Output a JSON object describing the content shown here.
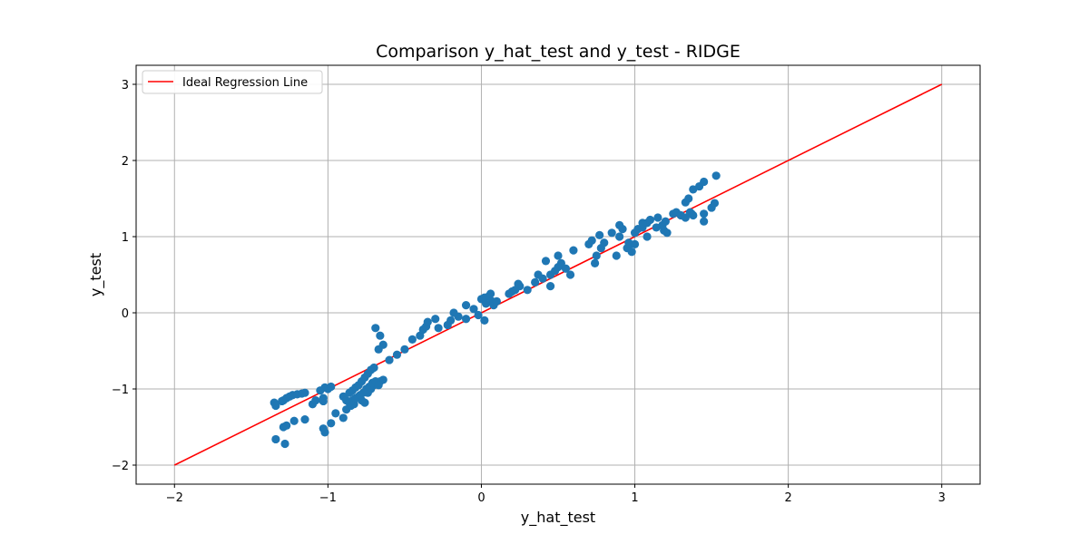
{
  "chart_data": {
    "type": "scatter",
    "title": "Comparison y_hat_test and y_test - RIDGE",
    "xlabel": "y_hat_test",
    "ylabel": "y_test",
    "xlim": [
      -2.25,
      3.25
    ],
    "ylim": [
      -2.25,
      3.25
    ],
    "xticks": [
      -2,
      -1,
      0,
      1,
      2,
      3
    ],
    "yticks": [
      -2,
      -1,
      0,
      1,
      2,
      3
    ],
    "xtick_labels": [
      "−2",
      "−1",
      "0",
      "1",
      "2",
      "3"
    ],
    "ytick_labels": [
      "−2",
      "−1",
      "0",
      "1",
      "2",
      "3"
    ],
    "grid": true,
    "legend": {
      "position": "top-left",
      "entries": [
        "Ideal Regression Line"
      ]
    },
    "colors": {
      "points": "#1f77b4",
      "line": "#ff0000",
      "grid": "#b0b0b0"
    },
    "line": {
      "name": "Ideal Regression Line",
      "x": [
        -2,
        3
      ],
      "y": [
        -2,
        3
      ]
    },
    "series": [
      {
        "x": [
          -1.35,
          -1.34,
          -1.3,
          -1.29,
          -1.27,
          -1.25,
          -1.23,
          -1.2,
          -1.17,
          -1.15,
          -1.1,
          -1.08,
          -1.05,
          -1.02,
          -1.0,
          -0.98,
          -1.03,
          -1.02,
          -1.22,
          -1.15,
          -1.29,
          -1.27,
          -1.34,
          -1.28,
          -1.03,
          -1.03,
          -0.98,
          -0.95,
          -0.9,
          -0.88,
          -0.85,
          -0.83,
          -0.8,
          -0.78,
          -0.76,
          -0.74,
          -0.72,
          -0.7,
          -0.68,
          -0.66,
          -0.64,
          -0.86,
          -0.84,
          -0.82,
          -0.79,
          -0.77,
          -0.75,
          -0.73,
          -0.71,
          -0.69,
          -0.67,
          -0.9,
          -0.88,
          -0.86,
          -0.84,
          -0.82,
          -0.8,
          -0.78,
          -0.76,
          -0.74,
          -0.72,
          -0.7,
          -0.69,
          -0.66,
          -0.67,
          -0.64,
          -0.6,
          -0.55,
          -0.5,
          -0.45,
          -0.4,
          -0.38,
          -0.36,
          -0.35,
          -0.3,
          -0.28,
          -0.22,
          -0.2,
          -0.15,
          -0.18,
          -0.1,
          -0.05,
          0.0,
          0.02,
          0.05,
          0.07,
          0.03,
          0.06,
          0.08,
          0.1,
          0.02,
          -0.1,
          -0.02,
          0.18,
          0.22,
          0.25,
          0.3,
          0.35,
          0.4,
          0.45,
          0.48,
          0.5,
          0.52,
          0.55,
          0.58,
          0.45,
          0.6,
          0.42,
          0.7,
          0.72,
          0.75,
          0.78,
          0.8,
          0.85,
          0.88,
          0.9,
          0.92,
          0.95,
          0.97,
          1.0,
          1.02,
          1.05,
          1.08,
          1.1,
          1.15,
          1.18,
          1.2,
          1.25,
          1.27,
          1.33,
          1.35,
          1.38,
          1.42,
          1.45,
          1.5,
          1.52,
          1.53,
          1.45,
          1.37,
          1.36,
          1.3,
          1.33,
          0.98,
          0.96,
          1.08,
          1.21,
          1.14,
          1.19,
          1.38,
          1.45,
          0.5,
          0.2,
          0.24,
          0.37,
          0.9,
          1.0,
          1.05,
          0.74,
          0.77
        ],
        "y": [
          -1.18,
          -1.22,
          -1.16,
          -1.15,
          -1.12,
          -1.1,
          -1.08,
          -1.07,
          -1.06,
          -1.05,
          -1.2,
          -1.15,
          -1.02,
          -0.98,
          -1.0,
          -0.97,
          -1.52,
          -1.57,
          -1.42,
          -1.4,
          -1.5,
          -1.48,
          -1.66,
          -1.72,
          -1.12,
          -1.16,
          -1.45,
          -1.32,
          -1.38,
          -1.27,
          -1.22,
          -1.2,
          -1.1,
          -1.15,
          -1.18,
          -1.05,
          -1.0,
          -0.95,
          -0.92,
          -0.9,
          -0.88,
          -1.18,
          -1.15,
          -1.12,
          -1.08,
          -1.05,
          -1.0,
          -0.97,
          -0.92,
          -0.9,
          -0.95,
          -1.1,
          -1.15,
          -1.05,
          -1.02,
          -0.98,
          -0.95,
          -0.9,
          -0.85,
          -0.8,
          -0.75,
          -0.72,
          -0.2,
          -0.3,
          -0.48,
          -0.42,
          -0.62,
          -0.55,
          -0.48,
          -0.35,
          -0.3,
          -0.22,
          -0.18,
          -0.12,
          -0.08,
          -0.2,
          -0.16,
          -0.1,
          -0.05,
          0.0,
          0.1,
          0.05,
          0.18,
          0.2,
          0.22,
          0.15,
          0.12,
          0.25,
          0.1,
          0.15,
          -0.1,
          -0.08,
          -0.03,
          0.25,
          0.3,
          0.35,
          0.3,
          0.4,
          0.45,
          0.5,
          0.55,
          0.6,
          0.65,
          0.58,
          0.5,
          0.35,
          0.82,
          0.68,
          0.9,
          0.95,
          0.75,
          0.85,
          0.92,
          1.05,
          0.75,
          1.0,
          1.1,
          0.85,
          0.9,
          1.05,
          1.1,
          1.12,
          1.18,
          1.22,
          1.25,
          1.15,
          1.2,
          1.3,
          1.32,
          1.45,
          1.5,
          1.62,
          1.66,
          1.72,
          1.38,
          1.44,
          1.8,
          1.2,
          1.3,
          1.32,
          1.28,
          1.25,
          0.8,
          0.92,
          1.0,
          1.05,
          1.12,
          1.08,
          1.28,
          1.3,
          0.75,
          0.28,
          0.38,
          0.5,
          1.15,
          0.9,
          1.18,
          0.65,
          1.02
        ]
      }
    ]
  }
}
